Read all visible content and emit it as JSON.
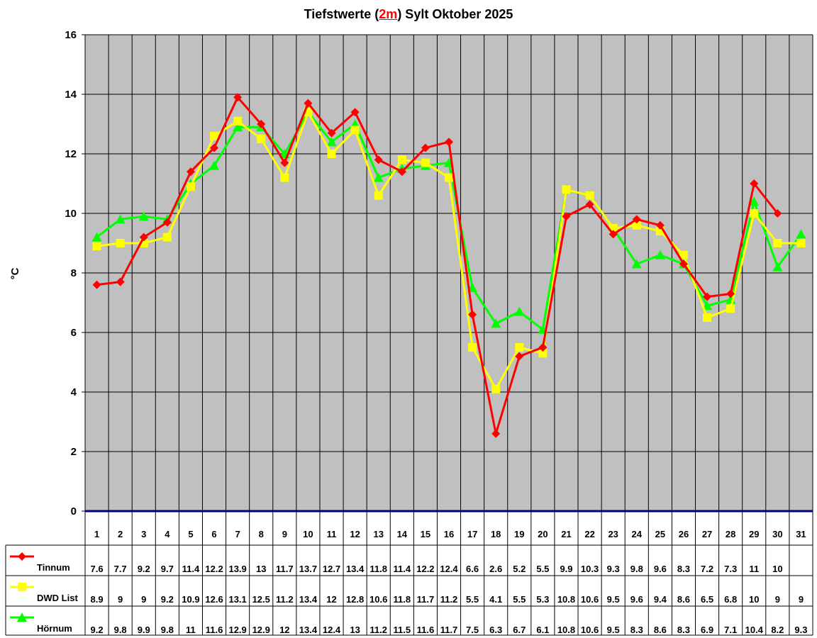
{
  "chart_data": {
    "type": "line",
    "title_pre": "Tiefstwerte (",
    "title_hl": "2m",
    "title_post": ") Sylt Oktober 2025",
    "ylabel": "°C",
    "ylim": [
      0,
      16
    ],
    "yticks": [
      "0",
      "2",
      "4",
      "6",
      "8",
      "10",
      "12",
      "14",
      "16"
    ],
    "categories": [
      "1",
      "2",
      "3",
      "4",
      "5",
      "6",
      "7",
      "8",
      "9",
      "10",
      "11",
      "12",
      "13",
      "14",
      "15",
      "16",
      "17",
      "18",
      "19",
      "20",
      "21",
      "22",
      "23",
      "24",
      "25",
      "26",
      "27",
      "28",
      "29",
      "30",
      "31"
    ],
    "grid": true,
    "legend_placement": "bottom-table",
    "series": [
      {
        "name": "Tinnum",
        "color": "#ff0000",
        "marker": "diamond",
        "values": [
          7.6,
          7.7,
          9.2,
          9.7,
          11.4,
          12.2,
          13.9,
          13,
          11.7,
          13.7,
          12.7,
          13.4,
          11.8,
          11.4,
          12.2,
          12.4,
          6.6,
          2.6,
          5.2,
          5.5,
          9.9,
          10.3,
          9.3,
          9.8,
          9.6,
          8.3,
          7.2,
          7.3,
          11,
          10,
          null
        ]
      },
      {
        "name": "DWD List",
        "color": "#ffff00",
        "marker": "square",
        "values": [
          8.9,
          9,
          9,
          9.2,
          10.9,
          12.6,
          13.1,
          12.5,
          11.2,
          13.4,
          12,
          12.8,
          10.6,
          11.8,
          11.7,
          11.2,
          5.5,
          4.1,
          5.5,
          5.3,
          10.8,
          10.6,
          9.5,
          9.6,
          9.4,
          8.6,
          6.5,
          6.8,
          10,
          9,
          9
        ]
      },
      {
        "name": "Hörnum",
        "color": "#00ff00",
        "marker": "triangle",
        "values": [
          9.2,
          9.8,
          9.9,
          9.8,
          11,
          11.6,
          12.9,
          12.9,
          12,
          13.4,
          12.4,
          13,
          11.2,
          11.5,
          11.6,
          11.7,
          7.5,
          6.3,
          6.7,
          6.1,
          10.8,
          10.6,
          9.5,
          8.3,
          8.6,
          8.3,
          6.9,
          7.1,
          10.4,
          8.2,
          9.3
        ]
      }
    ],
    "colors": {
      "plot_bg": "#c0c0c0",
      "grid": "#000000",
      "zero_line": "#000080"
    }
  }
}
